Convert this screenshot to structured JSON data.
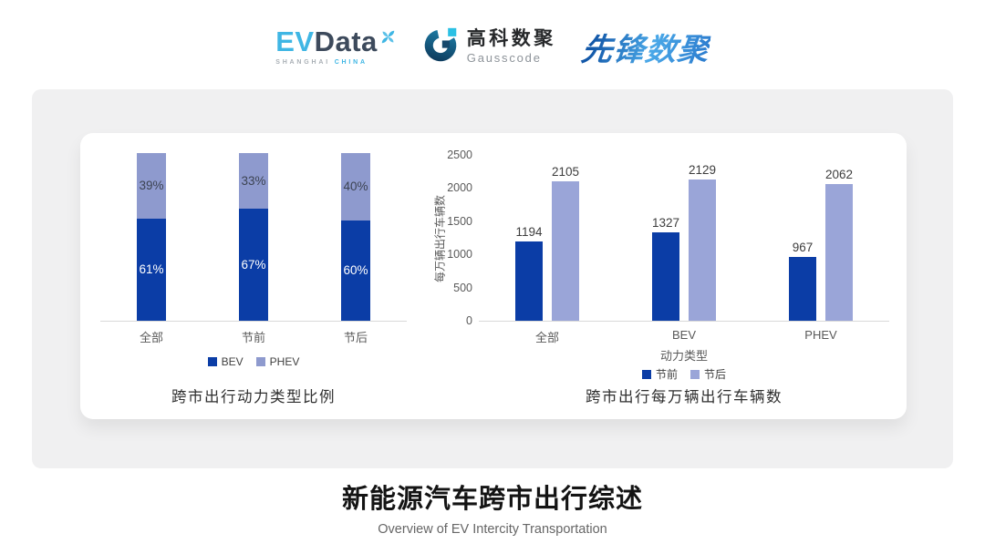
{
  "header": {
    "evdata_logo": {
      "ev": "EV",
      "data": "Data",
      "sub_left": "SHANGHAI",
      "sub_right": "CHINA"
    },
    "gausscode_logo": {
      "cn_name": "高科数聚",
      "en_name": "Gausscode"
    },
    "xianfeng_logo": {
      "name": "先锋数聚"
    }
  },
  "chart_data": [
    {
      "type": "bar",
      "subtype": "stacked-percent",
      "title": "跨市出行动力类型比例",
      "categories": [
        "全部",
        "节前",
        "节后"
      ],
      "series": [
        {
          "name": "BEV",
          "values": [
            61,
            67,
            60
          ],
          "color": "#0b3da6",
          "label_color": "#ffffff"
        },
        {
          "name": "PHEV",
          "values": [
            39,
            33,
            40
          ],
          "color": "#8e9ace",
          "label_color": "#3c4352"
        }
      ],
      "unit": "%",
      "ylim": [
        0,
        100
      ],
      "grid": false,
      "legend_position": "bottom"
    },
    {
      "type": "bar",
      "subtype": "grouped",
      "title": "跨市出行每万辆出行车辆数",
      "categories": [
        "全部",
        "BEV",
        "PHEV"
      ],
      "xlabel": "动力类型",
      "ylabel": "每万辆出行车辆数",
      "series": [
        {
          "name": "节前",
          "values": [
            1194,
            1327,
            967
          ],
          "color": "#0b3da6"
        },
        {
          "name": "节后",
          "values": [
            2105,
            2129,
            2062
          ],
          "color": "#9aa5d8"
        }
      ],
      "yticks": [
        0,
        500,
        1000,
        1500,
        2000,
        2500
      ],
      "ylim": [
        0,
        2500
      ],
      "grid": false,
      "legend_position": "bottom"
    }
  ],
  "footer": {
    "title": "新能源汽车跨市出行综述",
    "subtitle": "Overview of EV Intercity Transportation"
  },
  "colors": {
    "bev_dark_blue": "#0b3da6",
    "phev_light_blue": "#8e9ace",
    "card_background": "#f0f0f1",
    "panel_background": "#ffffff",
    "axis_line": "#d9d9d9",
    "axis_text": "#595959",
    "evdata_cyan": "#3fb6e4",
    "evdata_slate": "#3d4a5c",
    "xianfeng_blue": "#2a7cc9"
  }
}
